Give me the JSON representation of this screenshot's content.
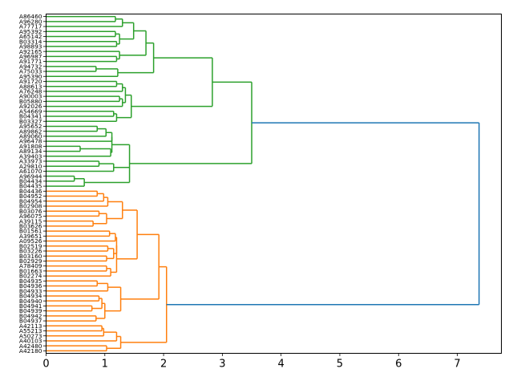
{
  "chart_data": {
    "type": "dendrogram",
    "orientation": "right",
    "xlim": [
      0,
      7.75
    ],
    "xticks": [
      0,
      1,
      2,
      3,
      4,
      5,
      6,
      7
    ],
    "grid": false,
    "colors": {
      "green_cluster": "#2ca02c",
      "orange_cluster": "#ff7f0e",
      "root_link": "#1f77b4"
    },
    "leaves": [
      "A86460",
      "A96280",
      "A77717",
      "A95392",
      "A65142",
      "B03314",
      "A98893",
      "A92165",
      "A96987",
      "A91771",
      "A94732",
      "A75033",
      "A95390",
      "A91720",
      "A88613",
      "A76248",
      "A90003",
      "B05880",
      "A92026",
      "A54669",
      "B04341",
      "B03327",
      "A95652",
      "A89862",
      "A89060",
      "A96478",
      "A91808",
      "A89134",
      "A39403",
      "A33973",
      "A29810",
      "A61070",
      "A96944",
      "B04434",
      "B04435",
      "B04436",
      "B04952",
      "B04954",
      "B02908",
      "B03076",
      "A96075",
      "A39115",
      "B03626",
      "B01561",
      "A39651",
      "A09526",
      "B02519",
      "B03226",
      "B03160",
      "B02929",
      "A78409",
      "B01663",
      "B02274",
      "B04935",
      "B04936",
      "B04933",
      "B04934",
      "B04940",
      "B04941",
      "B04939",
      "B04942",
      "B04937",
      "A42113",
      "A55213",
      "A50273",
      "A40103",
      "A42480",
      "A42180"
    ]
  }
}
